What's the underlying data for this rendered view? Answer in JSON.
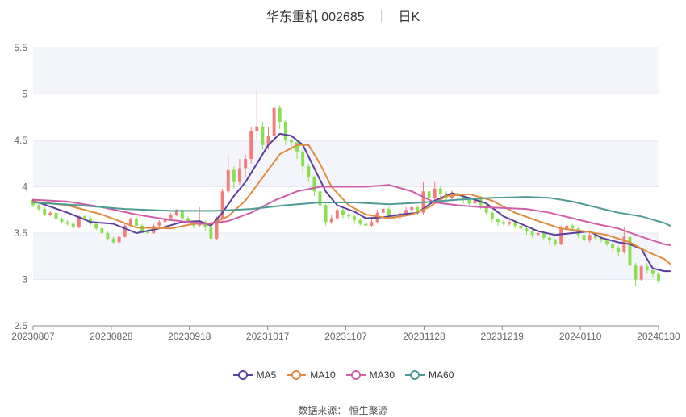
{
  "header": {
    "name": "华东重机",
    "code": "002685",
    "period": "日K"
  },
  "footer": {
    "source_label": "数据来源：",
    "source_value": "恒生聚源"
  },
  "chart_data": {
    "type": "candlestick",
    "y_axis": {
      "min": 2.5,
      "max": 5.5,
      "ticks": [
        "2.5",
        "3",
        "3.5",
        "4",
        "4.5",
        "5",
        "5.5"
      ]
    },
    "x_axis": {
      "tick_labels": [
        "20230807",
        "20230828",
        "20230918",
        "20231017",
        "20231107",
        "20231128",
        "20231219",
        "20240110",
        "20240130"
      ]
    },
    "grid": true,
    "band_fill": "#f4f5fa",
    "up_color": "#f27d7d",
    "down_color": "#89e04e",
    "legend_position": "bottom",
    "candles": [
      [
        3.86,
        3.8,
        3.88,
        3.78
      ],
      [
        3.8,
        3.76,
        3.82,
        3.74
      ],
      [
        3.76,
        3.7,
        3.78,
        3.68
      ],
      [
        3.7,
        3.72,
        3.74,
        3.68
      ],
      [
        3.72,
        3.65,
        3.74,
        3.63
      ],
      [
        3.65,
        3.62,
        3.67,
        3.6
      ],
      [
        3.62,
        3.6,
        3.64,
        3.58
      ],
      [
        3.6,
        3.56,
        3.62,
        3.54
      ],
      [
        3.56,
        3.68,
        3.7,
        3.55
      ],
      [
        3.68,
        3.66,
        3.7,
        3.64
      ],
      [
        3.66,
        3.6,
        3.68,
        3.58
      ],
      [
        3.6,
        3.55,
        3.62,
        3.53
      ],
      [
        3.55,
        3.5,
        3.57,
        3.48
      ],
      [
        3.5,
        3.44,
        3.52,
        3.42
      ],
      [
        3.44,
        3.4,
        3.46,
        3.38
      ],
      [
        3.4,
        3.46,
        3.48,
        3.38
      ],
      [
        3.46,
        3.58,
        3.6,
        3.45
      ],
      [
        3.58,
        3.65,
        3.67,
        3.56
      ],
      [
        3.65,
        3.58,
        3.67,
        3.56
      ],
      [
        3.58,
        3.52,
        3.6,
        3.5
      ],
      [
        3.52,
        3.5,
        3.54,
        3.48
      ],
      [
        3.5,
        3.58,
        3.6,
        3.49
      ],
      [
        3.58,
        3.62,
        3.64,
        3.56
      ],
      [
        3.62,
        3.66,
        3.68,
        3.6
      ],
      [
        3.66,
        3.7,
        3.72,
        3.64
      ],
      [
        3.7,
        3.74,
        3.76,
        3.68
      ],
      [
        3.74,
        3.66,
        3.76,
        3.64
      ],
      [
        3.66,
        3.62,
        3.68,
        3.6
      ],
      [
        3.62,
        3.58,
        3.64,
        3.55
      ],
      [
        3.58,
        3.62,
        3.78,
        3.56
      ],
      [
        3.62,
        3.56,
        3.64,
        3.52
      ],
      [
        3.56,
        3.44,
        3.58,
        3.4
      ],
      [
        3.44,
        3.65,
        3.68,
        3.43
      ],
      [
        3.65,
        3.95,
        3.98,
        3.64
      ],
      [
        3.95,
        4.18,
        4.35,
        3.92
      ],
      [
        4.18,
        4.05,
        4.22,
        3.98
      ],
      [
        4.05,
        4.2,
        4.3,
        4.02
      ],
      [
        4.2,
        4.3,
        4.35,
        4.1
      ],
      [
        4.3,
        4.6,
        4.65,
        4.25
      ],
      [
        4.6,
        4.65,
        5.05,
        4.5
      ],
      [
        4.65,
        4.45,
        4.7,
        4.4
      ],
      [
        4.45,
        4.55,
        4.65,
        4.4
      ],
      [
        4.55,
        4.85,
        4.88,
        4.5
      ],
      [
        4.85,
        4.7,
        4.88,
        4.62
      ],
      [
        4.7,
        4.5,
        4.72,
        4.45
      ],
      [
        4.5,
        4.48,
        4.55,
        4.4
      ],
      [
        4.48,
        4.38,
        4.5,
        4.3
      ],
      [
        4.38,
        4.22,
        4.4,
        4.15
      ],
      [
        4.22,
        4.1,
        4.25,
        4.05
      ],
      [
        4.1,
        3.95,
        4.12,
        3.9
      ],
      [
        3.95,
        3.8,
        3.98,
        3.75
      ],
      [
        3.8,
        3.62,
        3.82,
        3.58
      ],
      [
        3.62,
        3.66,
        3.7,
        3.6
      ],
      [
        3.66,
        3.75,
        3.78,
        3.64
      ],
      [
        3.75,
        3.7,
        3.78,
        3.66
      ],
      [
        3.7,
        3.68,
        3.72,
        3.64
      ],
      [
        3.68,
        3.64,
        3.7,
        3.6
      ],
      [
        3.64,
        3.6,
        3.66,
        3.58
      ],
      [
        3.6,
        3.58,
        3.62,
        3.55
      ],
      [
        3.58,
        3.62,
        3.65,
        3.56
      ],
      [
        3.62,
        3.72,
        3.75,
        3.6
      ],
      [
        3.72,
        3.76,
        3.78,
        3.7
      ],
      [
        3.76,
        3.7,
        3.78,
        3.68
      ],
      [
        3.7,
        3.68,
        3.72,
        3.64
      ],
      [
        3.68,
        3.7,
        3.72,
        3.66
      ],
      [
        3.7,
        3.75,
        3.78,
        3.68
      ],
      [
        3.75,
        3.78,
        3.8,
        3.72
      ],
      [
        3.78,
        3.72,
        3.8,
        3.7
      ],
      [
        3.72,
        3.95,
        4.05,
        3.7
      ],
      [
        3.95,
        3.88,
        4.0,
        3.85
      ],
      [
        3.88,
        3.98,
        4.05,
        3.86
      ],
      [
        3.98,
        3.92,
        4.0,
        3.88
      ],
      [
        3.92,
        3.88,
        3.95,
        3.85
      ],
      [
        3.88,
        3.93,
        3.96,
        3.86
      ],
      [
        3.93,
        3.9,
        3.95,
        3.86
      ],
      [
        3.9,
        3.86,
        3.92,
        3.82
      ],
      [
        3.86,
        3.82,
        3.88,
        3.78
      ],
      [
        3.82,
        3.88,
        3.9,
        3.8
      ],
      [
        3.88,
        3.8,
        3.9,
        3.76
      ],
      [
        3.8,
        3.72,
        3.82,
        3.7
      ],
      [
        3.72,
        3.65,
        3.74,
        3.62
      ],
      [
        3.65,
        3.62,
        3.66,
        3.58
      ],
      [
        3.62,
        3.6,
        3.64,
        3.58
      ],
      [
        3.6,
        3.62,
        3.64,
        3.58
      ],
      [
        3.62,
        3.58,
        3.64,
        3.55
      ],
      [
        3.58,
        3.55,
        3.6,
        3.52
      ],
      [
        3.55,
        3.52,
        3.57,
        3.48
      ],
      [
        3.52,
        3.48,
        3.54,
        3.45
      ],
      [
        3.48,
        3.5,
        3.52,
        3.46
      ],
      [
        3.5,
        3.45,
        3.52,
        3.42
      ],
      [
        3.45,
        3.42,
        3.47,
        3.38
      ],
      [
        3.42,
        3.38,
        3.44,
        3.36
      ],
      [
        3.38,
        3.55,
        3.58,
        3.37
      ],
      [
        3.55,
        3.58,
        3.6,
        3.52
      ],
      [
        3.58,
        3.55,
        3.6,
        3.52
      ],
      [
        3.55,
        3.48,
        3.57,
        3.45
      ],
      [
        3.48,
        3.42,
        3.5,
        3.4
      ],
      [
        3.42,
        3.48,
        3.5,
        3.4
      ],
      [
        3.48,
        3.45,
        3.5,
        3.42
      ],
      [
        3.45,
        3.42,
        3.47,
        3.4
      ],
      [
        3.42,
        3.38,
        3.44,
        3.36
      ],
      [
        3.38,
        3.34,
        3.4,
        3.3
      ],
      [
        3.34,
        3.3,
        3.36,
        3.25
      ],
      [
        3.3,
        3.46,
        3.56,
        3.28
      ],
      [
        3.46,
        3.15,
        3.48,
        3.12
      ],
      [
        3.15,
        3.0,
        3.18,
        2.93
      ],
      [
        3.0,
        3.14,
        3.16,
        2.98
      ],
      [
        3.14,
        3.1,
        3.18,
        3.06
      ],
      [
        3.1,
        3.06,
        3.12,
        3.02
      ],
      [
        3.06,
        2.98,
        3.08,
        2.95
      ]
    ],
    "series": [
      {
        "name": "MA5",
        "color": "#5b3f9e",
        "values": [
          [
            0,
            3.85
          ],
          [
            6,
            3.72
          ],
          [
            10,
            3.62
          ],
          [
            14,
            3.6
          ],
          [
            18,
            3.5
          ],
          [
            22,
            3.55
          ],
          [
            26,
            3.62
          ],
          [
            29,
            3.63
          ],
          [
            31,
            3.58
          ],
          [
            33,
            3.72
          ],
          [
            35,
            3.9
          ],
          [
            37,
            4.05
          ],
          [
            39,
            4.25
          ],
          [
            41,
            4.45
          ],
          [
            43,
            4.57
          ],
          [
            45,
            4.55
          ],
          [
            47,
            4.45
          ],
          [
            49,
            4.2
          ],
          [
            51,
            3.95
          ],
          [
            53,
            3.8
          ],
          [
            56,
            3.73
          ],
          [
            58,
            3.66
          ],
          [
            61,
            3.67
          ],
          [
            64,
            3.7
          ],
          [
            67,
            3.72
          ],
          [
            70,
            3.85
          ],
          [
            73,
            3.93
          ],
          [
            76,
            3.88
          ],
          [
            79,
            3.82
          ],
          [
            82,
            3.68
          ],
          [
            85,
            3.6
          ],
          [
            88,
            3.52
          ],
          [
            91,
            3.48
          ],
          [
            94,
            3.5
          ],
          [
            97,
            3.52
          ],
          [
            99,
            3.45
          ],
          [
            102,
            3.4
          ],
          [
            104,
            3.38
          ],
          [
            106,
            3.33
          ],
          [
            107,
            3.22
          ],
          [
            108,
            3.12
          ],
          [
            110,
            3.09
          ],
          [
            111,
            3.09
          ]
        ]
      },
      {
        "name": "MA10",
        "color": "#e08b3f",
        "values": [
          [
            0,
            3.84
          ],
          [
            6,
            3.8
          ],
          [
            12,
            3.7
          ],
          [
            18,
            3.56
          ],
          [
            24,
            3.55
          ],
          [
            28,
            3.6
          ],
          [
            31,
            3.6
          ],
          [
            34,
            3.68
          ],
          [
            37,
            3.85
          ],
          [
            40,
            4.1
          ],
          [
            43,
            4.35
          ],
          [
            46,
            4.45
          ],
          [
            48,
            4.45
          ],
          [
            50,
            4.25
          ],
          [
            52,
            4.0
          ],
          [
            55,
            3.8
          ],
          [
            58,
            3.7
          ],
          [
            62,
            3.66
          ],
          [
            66,
            3.7
          ],
          [
            69,
            3.78
          ],
          [
            72,
            3.9
          ],
          [
            76,
            3.92
          ],
          [
            80,
            3.85
          ],
          [
            84,
            3.72
          ],
          [
            88,
            3.63
          ],
          [
            92,
            3.55
          ],
          [
            96,
            3.52
          ],
          [
            100,
            3.48
          ],
          [
            104,
            3.4
          ],
          [
            107,
            3.3
          ],
          [
            110,
            3.22
          ],
          [
            111,
            3.17
          ]
        ]
      },
      {
        "name": "MA30",
        "color": "#d05fa8",
        "values": [
          [
            0,
            3.86
          ],
          [
            6,
            3.84
          ],
          [
            12,
            3.78
          ],
          [
            18,
            3.7
          ],
          [
            24,
            3.64
          ],
          [
            30,
            3.6
          ],
          [
            34,
            3.63
          ],
          [
            38,
            3.72
          ],
          [
            42,
            3.85
          ],
          [
            46,
            3.95
          ],
          [
            50,
            4.0
          ],
          [
            54,
            4.0
          ],
          [
            58,
            4.0
          ],
          [
            62,
            4.02
          ],
          [
            66,
            3.95
          ],
          [
            70,
            3.83
          ],
          [
            74,
            3.8
          ],
          [
            78,
            3.78
          ],
          [
            82,
            3.77
          ],
          [
            86,
            3.76
          ],
          [
            90,
            3.72
          ],
          [
            94,
            3.66
          ],
          [
            98,
            3.6
          ],
          [
            102,
            3.55
          ],
          [
            106,
            3.46
          ],
          [
            110,
            3.38
          ],
          [
            111,
            3.37
          ]
        ]
      },
      {
        "name": "MA60",
        "color": "#4f9a94",
        "values": [
          [
            0,
            3.83
          ],
          [
            8,
            3.8
          ],
          [
            16,
            3.76
          ],
          [
            24,
            3.74
          ],
          [
            32,
            3.74
          ],
          [
            38,
            3.76
          ],
          [
            44,
            3.8
          ],
          [
            50,
            3.83
          ],
          [
            56,
            3.83
          ],
          [
            62,
            3.81
          ],
          [
            68,
            3.83
          ],
          [
            74,
            3.86
          ],
          [
            80,
            3.88
          ],
          [
            86,
            3.89
          ],
          [
            90,
            3.88
          ],
          [
            94,
            3.84
          ],
          [
            98,
            3.78
          ],
          [
            102,
            3.72
          ],
          [
            106,
            3.68
          ],
          [
            110,
            3.61
          ],
          [
            111,
            3.58
          ]
        ]
      }
    ]
  }
}
